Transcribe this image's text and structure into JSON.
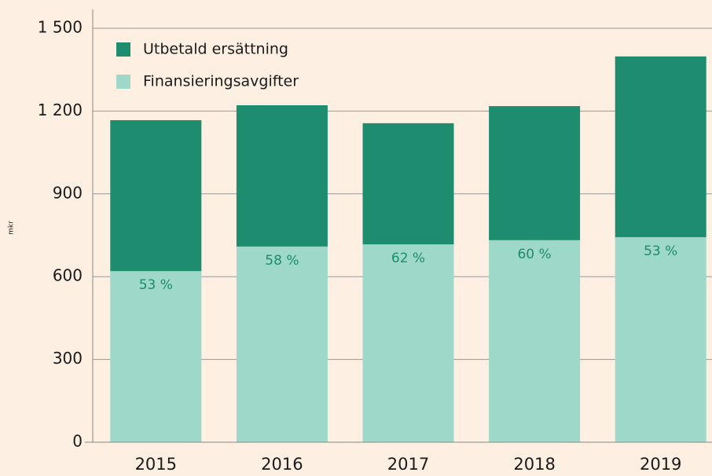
{
  "chart_data": {
    "type": "stacked_bar",
    "y_label": "mkr",
    "categories": [
      "2015",
      "2016",
      "2017",
      "2018",
      "2019"
    ],
    "series": [
      {
        "name": "Utbetald ersättning",
        "color": "#1e8c6e",
        "values": [
          547,
          512,
          439,
          486,
          655
        ]
      },
      {
        "name": "Finansieringsavgifter",
        "color": "#9dd8c8",
        "values": [
          620,
          709,
          717,
          732,
          743
        ],
        "value_labels": [
          "53 %",
          "58 %",
          "62 %",
          "60 %",
          "53 %"
        ],
        "label_color": "#1e8c6e"
      }
    ],
    "ylim": [
      0,
      1500
    ],
    "yticks": [
      0,
      300,
      600,
      900,
      {
        "value": 1200,
        "label": "1 200"
      },
      {
        "value": 1500,
        "label": "1 500"
      }
    ],
    "grid": true,
    "legend": "top-left"
  }
}
